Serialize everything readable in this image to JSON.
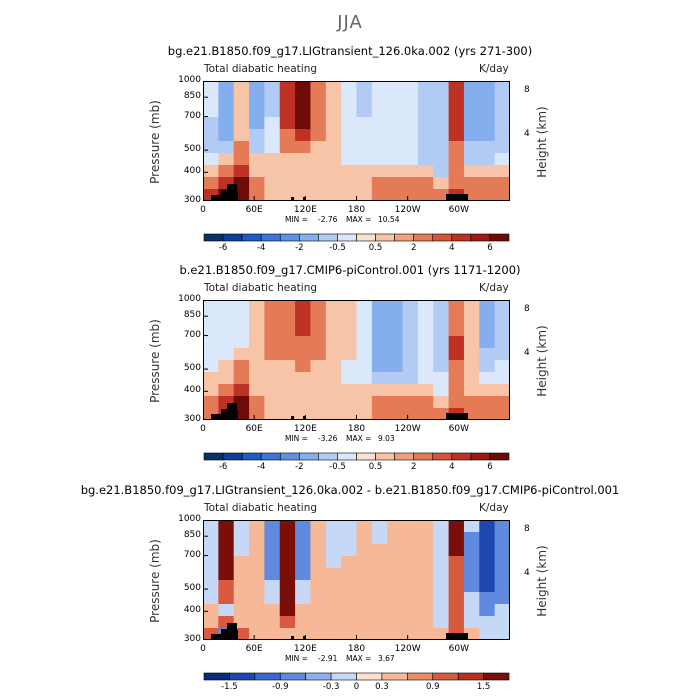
{
  "suptitle": "JJA",
  "chart_data": [
    {
      "type": "heatmap",
      "title": "bg.e21.B1850.f09_g17.LIGtransient_126.0ka.002 (yrs 271-300)",
      "subtitle_left": "Total diabatic heating",
      "units": "K/day",
      "ylabel": "Pressure (mb)",
      "ylabel_right": "Height (km)",
      "yticks": [
        "300",
        "400",
        "500",
        "700",
        "850",
        "1000"
      ],
      "yticks_right": [
        "8",
        "4"
      ],
      "xticks": [
        "0",
        "60E",
        "120E",
        "180",
        "120W",
        "60W"
      ],
      "xlim": [
        0,
        360
      ],
      "ylim": [
        1000,
        300
      ],
      "min_label": "MIN =",
      "min": "-2.76",
      "max_label": "MAX =",
      "max": "10.54",
      "colorbar_labels": [
        "-6",
        "-4",
        "-2",
        "-0.5",
        "0.5",
        "2",
        "4",
        "6"
      ],
      "field": [
        [
          -0.5,
          -2,
          0.5,
          -2,
          -1,
          4,
          6,
          2,
          0.5,
          -0.5,
          -1,
          -0.5,
          -0.5,
          -0.5,
          -1,
          -1,
          4,
          -2,
          -2,
          -1
        ],
        [
          -0.5,
          -2,
          0.5,
          -2,
          -1,
          4,
          6,
          2,
          0.5,
          -0.5,
          -1,
          -0.5,
          -0.5,
          -0.5,
          -1,
          -1,
          4,
          -2,
          -2,
          -1
        ],
        [
          -0.5,
          -2,
          0.5,
          -2,
          -1,
          4,
          6,
          2,
          0.5,
          -0.5,
          -1,
          -0.5,
          -0.5,
          -0.5,
          -1,
          -1,
          4,
          -2,
          -2,
          -1
        ],
        [
          -1,
          -2,
          0.5,
          -2,
          -0.5,
          4,
          6,
          2,
          0.5,
          -0.5,
          -0.5,
          -0.5,
          -0.5,
          -0.5,
          -1,
          -1,
          4,
          -2,
          -2,
          -1
        ],
        [
          -1,
          -2,
          0.5,
          -1,
          -0.5,
          2,
          4,
          2,
          0.5,
          -0.5,
          -0.5,
          -0.5,
          -0.5,
          -0.5,
          -1,
          -1,
          4,
          -2,
          -2,
          -1
        ],
        [
          -1,
          -1,
          2,
          -1,
          -0.5,
          2,
          2,
          0.5,
          0.5,
          -0.5,
          -0.5,
          -0.5,
          -0.5,
          -0.5,
          -1,
          -1,
          2,
          -1,
          -1,
          -1
        ],
        [
          -0.5,
          0.5,
          2,
          0.5,
          0.5,
          0.5,
          0.5,
          0.5,
          0.5,
          -0.5,
          -0.5,
          -0.5,
          -0.5,
          -0.5,
          -1,
          -1,
          2,
          -1,
          -1,
          -0.5
        ],
        [
          0.5,
          2,
          4,
          0.5,
          0.5,
          0.5,
          0.5,
          0.5,
          0.5,
          0.5,
          0.5,
          0.5,
          0.5,
          0.5,
          0.5,
          -1,
          2,
          0.5,
          0.5,
          0.5
        ],
        [
          2,
          4,
          6,
          2,
          0.5,
          0.5,
          0.5,
          0.5,
          0.5,
          0.5,
          0.5,
          2,
          2,
          2,
          2,
          0.5,
          2,
          2,
          2,
          2
        ],
        [
          4,
          6,
          6,
          2,
          0.5,
          0.5,
          0.5,
          0.5,
          0.5,
          0.5,
          0.5,
          2,
          2,
          2,
          2,
          2,
          4,
          2,
          2,
          2
        ]
      ]
    },
    {
      "type": "heatmap",
      "title": "b.e21.B1850.f09_g17.CMIP6-piControl.001 (yrs 1171-1200)",
      "subtitle_left": "Total diabatic heating",
      "units": "K/day",
      "ylabel": "Pressure (mb)",
      "ylabel_right": "Height (km)",
      "yticks": [
        "300",
        "400",
        "500",
        "700",
        "850",
        "1000"
      ],
      "yticks_right": [
        "8",
        "4"
      ],
      "xticks": [
        "0",
        "60E",
        "120E",
        "180",
        "120W",
        "60W"
      ],
      "xlim": [
        0,
        360
      ],
      "ylim": [
        1000,
        300
      ],
      "min_label": "MIN =",
      "min": "-3.26",
      "max_label": "MAX =",
      "max": "9.03",
      "colorbar_labels": [
        "-6",
        "-4",
        "-2",
        "-0.5",
        "0.5",
        "2",
        "4",
        "6"
      ],
      "field": [
        [
          -0.5,
          -0.5,
          -0.5,
          0.5,
          2,
          2,
          4,
          2,
          0.5,
          0.5,
          -0.5,
          -2,
          -2,
          -1,
          -0.5,
          -1,
          2,
          0.5,
          -2,
          -1
        ],
        [
          -0.5,
          -0.5,
          -0.5,
          0.5,
          2,
          2,
          4,
          2,
          0.5,
          0.5,
          -0.5,
          -2,
          -2,
          -1,
          -0.5,
          -1,
          2,
          0.5,
          -2,
          -1
        ],
        [
          -0.5,
          -0.5,
          -0.5,
          0.5,
          2,
          2,
          4,
          2,
          0.5,
          0.5,
          -0.5,
          -2,
          -2,
          -1,
          -0.5,
          -1,
          2,
          0.5,
          -2,
          -1
        ],
        [
          -0.5,
          -0.5,
          -0.5,
          0.5,
          2,
          2,
          2,
          2,
          0.5,
          0.5,
          -0.5,
          -2,
          -2,
          -1,
          -0.5,
          -1,
          4,
          0.5,
          -2,
          -1
        ],
        [
          -0.5,
          -0.5,
          0.5,
          0.5,
          2,
          2,
          2,
          2,
          0.5,
          0.5,
          -0.5,
          -2,
          -2,
          -1,
          -0.5,
          -1,
          4,
          0.5,
          -1,
          -1
        ],
        [
          -0.5,
          0.5,
          2,
          0.5,
          0.5,
          0.5,
          2,
          0.5,
          0.5,
          -0.5,
          -0.5,
          -2,
          -2,
          -1,
          -0.5,
          -1,
          2,
          0.5,
          -1,
          -0.5
        ],
        [
          0.5,
          0.5,
          2,
          0.5,
          0.5,
          0.5,
          0.5,
          0.5,
          0.5,
          -0.5,
          -0.5,
          -1,
          -1,
          -1,
          -0.5,
          -0.5,
          2,
          0.5,
          -0.5,
          -0.5
        ],
        [
          0.5,
          2,
          4,
          0.5,
          0.5,
          0.5,
          0.5,
          0.5,
          0.5,
          0.5,
          0.5,
          0.5,
          0.5,
          0.5,
          0.5,
          -0.5,
          2,
          0.5,
          0.5,
          0.5
        ],
        [
          2,
          4,
          6,
          2,
          0.5,
          0.5,
          0.5,
          0.5,
          0.5,
          0.5,
          0.5,
          2,
          2,
          2,
          2,
          0.5,
          2,
          2,
          2,
          2
        ],
        [
          2,
          4,
          6,
          2,
          0.5,
          0.5,
          0.5,
          0.5,
          0.5,
          0.5,
          0.5,
          2,
          2,
          2,
          2,
          2,
          4,
          2,
          2,
          2
        ]
      ]
    },
    {
      "type": "heatmap",
      "title": "bg.e21.B1850.f09_g17.LIGtransient_126.0ka.002 - b.e21.B1850.f09_g17.CMIP6-piControl.001",
      "subtitle_left": "Total diabatic heating",
      "units": "K/day",
      "ylabel": "Pressure (mb)",
      "ylabel_right": "Height (km)",
      "yticks": [
        "300",
        "400",
        "500",
        "700",
        "850",
        "1000"
      ],
      "yticks_right": [
        "8",
        "4"
      ],
      "xticks": [
        "0",
        "60E",
        "120E",
        "180",
        "120W",
        "60W"
      ],
      "xlim": [
        0,
        360
      ],
      "ylim": [
        1000,
        300
      ],
      "min_label": "MIN =",
      "min": "-2.91",
      "max_label": "MAX =",
      "max": "3.67",
      "colorbar_labels": [
        "-1.5",
        "-0.9",
        "-0.3",
        "0",
        "0.3",
        "0.9",
        "1.5"
      ],
      "field": [
        [
          -0.3,
          1.5,
          -0.3,
          0.3,
          -0.9,
          1.5,
          -0.9,
          0.3,
          -0.3,
          -0.3,
          0.3,
          -0.3,
          0.3,
          0.3,
          0.3,
          -0.3,
          1.5,
          -0.3,
          -1.5,
          -0.9
        ],
        [
          -0.3,
          1.5,
          -0.3,
          0.3,
          -0.9,
          1.5,
          -0.9,
          0.3,
          -0.3,
          -0.3,
          0.3,
          -0.3,
          0.3,
          0.3,
          0.3,
          -0.3,
          1.5,
          -0.9,
          -1.5,
          -0.9
        ],
        [
          -0.3,
          1.5,
          -0.3,
          0.3,
          -0.9,
          1.5,
          -0.9,
          0.3,
          -0.3,
          -0.3,
          0.3,
          0.3,
          0.3,
          0.3,
          0.3,
          -0.3,
          1.5,
          -0.9,
          -1.5,
          -0.9
        ],
        [
          -0.3,
          1.5,
          0.3,
          0.3,
          -0.9,
          1.5,
          -0.9,
          0.3,
          -0.3,
          0.3,
          0.3,
          0.3,
          0.3,
          0.3,
          0.3,
          -0.3,
          0.9,
          -0.9,
          -1.5,
          -0.9
        ],
        [
          -0.3,
          1.5,
          0.3,
          0.3,
          -0.9,
          1.5,
          -0.9,
          0.3,
          0.3,
          0.3,
          0.3,
          0.3,
          0.3,
          0.3,
          0.3,
          -0.3,
          0.9,
          -0.9,
          -1.5,
          -0.9
        ],
        [
          -0.3,
          0.9,
          0.3,
          0.3,
          -0.3,
          1.5,
          -0.3,
          0.3,
          0.3,
          0.3,
          0.3,
          0.3,
          0.3,
          0.3,
          0.3,
          -0.3,
          0.9,
          -0.9,
          -1.5,
          -0.9
        ],
        [
          -0.3,
          0.9,
          0.3,
          0.3,
          -0.3,
          1.5,
          -0.3,
          0.3,
          0.3,
          0.3,
          0.3,
          0.3,
          0.3,
          0.3,
          0.3,
          -0.3,
          0.9,
          -0.3,
          -0.9,
          -0.9
        ],
        [
          0.3,
          -0.3,
          0.3,
          0.3,
          0.3,
          1.5,
          0.3,
          0.3,
          0.3,
          0.3,
          0.3,
          0.3,
          0.3,
          0.3,
          0.3,
          -0.3,
          0.9,
          -0.3,
          -0.9,
          -0.3
        ],
        [
          0.3,
          0.9,
          0.3,
          0.3,
          0.3,
          0.9,
          0.3,
          0.3,
          0.3,
          0.3,
          0.3,
          0.3,
          0.3,
          0.3,
          0.3,
          -0.3,
          0.9,
          -0.3,
          -0.3,
          -0.3
        ],
        [
          0.9,
          -0.9,
          0.9,
          0.3,
          0.3,
          0.3,
          0.3,
          0.3,
          0.3,
          0.3,
          0.3,
          0.3,
          0.3,
          0.3,
          0.3,
          0.3,
          0.9,
          0.3,
          -0.3,
          -0.3
        ]
      ]
    }
  ],
  "palette_main": {
    "levels": [
      -6,
      -5,
      -4,
      -3,
      -2,
      -1,
      -0.5,
      0,
      0.5,
      1,
      2,
      3,
      4,
      5,
      6
    ],
    "colors": [
      "#08306b",
      "#0d3e9c",
      "#1f5bc4",
      "#3c77d8",
      "#5e91e3",
      "#85aeee",
      "#b2cbf5",
      "#dbe7fb",
      "#fbe1d2",
      "#f8c4a8",
      "#f0a07c",
      "#e57a57",
      "#d5543a",
      "#bd3223",
      "#9c1a12",
      "#6e0b06"
    ]
  },
  "palette_diff": {
    "levels": [
      -1.5,
      -1.2,
      -0.9,
      -0.6,
      -0.3,
      0,
      0.3,
      0.6,
      0.9,
      1.2,
      1.5
    ],
    "colors": [
      "#0a2c80",
      "#1c48b0",
      "#3968d0",
      "#5f8ae0",
      "#8fb0ee",
      "#c6d8f8",
      "#fbe0cf",
      "#f6b896",
      "#ec8c68",
      "#d85a3e",
      "#b83020",
      "#7a0e08"
    ]
  }
}
